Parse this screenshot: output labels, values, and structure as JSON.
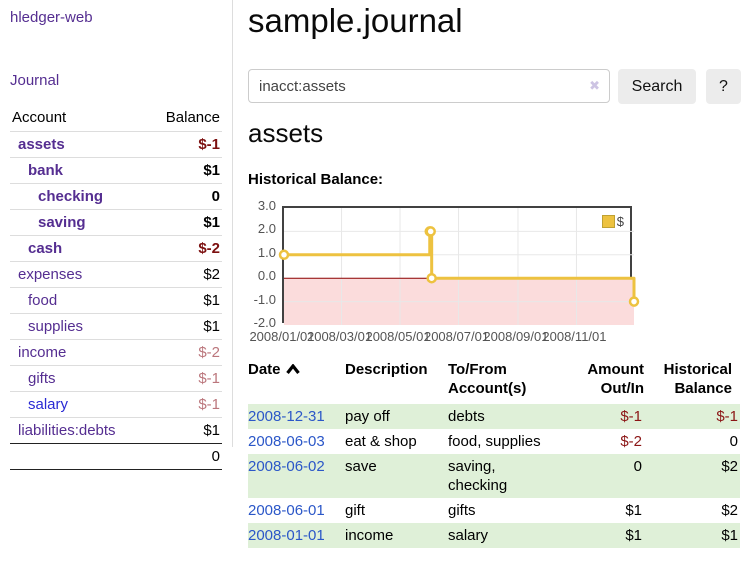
{
  "app": {
    "title": "hledger-web"
  },
  "sidebar": {
    "nav_journal": "Journal",
    "table": {
      "account_header": "Account",
      "balance_header": "Balance"
    },
    "accounts": [
      {
        "name": "assets",
        "indent": 0,
        "bold": true,
        "link": "purple",
        "balance": "$-1",
        "balclass": "neg-strong"
      },
      {
        "name": "bank",
        "indent": 1,
        "bold": true,
        "link": "purple",
        "balance": "$1",
        "balclass": ""
      },
      {
        "name": "checking",
        "indent": 2,
        "bold": true,
        "link": "purple",
        "balance": "0",
        "balclass": ""
      },
      {
        "name": "saving",
        "indent": 2,
        "bold": true,
        "link": "purple",
        "balance": "$1",
        "balclass": ""
      },
      {
        "name": "cash",
        "indent": 1,
        "bold": true,
        "link": "purple",
        "balance": "$-2",
        "balclass": "neg-strong"
      },
      {
        "name": "expenses",
        "indent": 0,
        "bold": false,
        "link": "purple",
        "balance": "$2",
        "balclass": ""
      },
      {
        "name": "food",
        "indent": 1,
        "bold": false,
        "link": "purple",
        "balance": "$1",
        "balclass": ""
      },
      {
        "name": "supplies",
        "indent": 1,
        "bold": false,
        "link": "purple",
        "balance": "$1",
        "balclass": ""
      },
      {
        "name": "income",
        "indent": 0,
        "bold": false,
        "link": "purple",
        "balance": "$-2",
        "balclass": "neg-soft"
      },
      {
        "name": "gifts",
        "indent": 1,
        "bold": false,
        "link": "purple",
        "balance": "$-1",
        "balclass": "neg-soft"
      },
      {
        "name": "salary",
        "indent": 1,
        "bold": false,
        "link": "blue",
        "balance": "$-1",
        "balclass": "neg-soft"
      },
      {
        "name": "liabilities:debts",
        "indent": 0,
        "bold": false,
        "link": "purple",
        "balance": "$1",
        "balclass": ""
      }
    ],
    "total": "0"
  },
  "main": {
    "title": "sample.journal",
    "search": {
      "value": "inacct:assets",
      "clear_icon": "✖",
      "button_label": "Search",
      "help_label": "?"
    },
    "account_heading": "assets"
  },
  "icons": {
    "sort": "chevron-up-icon",
    "clear": "clear-x-icon",
    "legend_swatch": "series-color-square"
  },
  "chart_data": {
    "type": "line",
    "title": "Historical Balance:",
    "step": true,
    "series": [
      {
        "name": "$",
        "color": "#edc240",
        "points": [
          [
            "2008-01-01",
            1
          ],
          [
            "2008-06-01",
            2
          ],
          [
            "2008-06-02",
            2
          ],
          [
            "2008-06-03",
            0
          ],
          [
            "2008-12-31",
            -1
          ]
        ]
      }
    ],
    "x_start": "2008-01-01",
    "x_end": "2008-12-31",
    "x_tick_dates": [
      "2008-01-01",
      "2008-03-01",
      "2008-05-01",
      "2008-07-01",
      "2008-09-01",
      "2008-11-01"
    ],
    "x_tick_labels": [
      "2008/01/01",
      "2008/03/01",
      "2008/05/01",
      "2008/07/01",
      "2008/09/01",
      "2008/11/01"
    ],
    "y_ticks": [
      3.0,
      2.0,
      1.0,
      0.0,
      -1.0,
      -2.0
    ],
    "ylim": [
      -2,
      3
    ],
    "legend": "$",
    "legend_position": "top-right",
    "grid": true,
    "grid_color": "#e8e8e8",
    "negative_fill": "#fbdcdc",
    "zero_line_color": "#8b0000",
    "border_color": "#414141"
  },
  "register": {
    "headers": [
      {
        "label": "Date",
        "align": "left",
        "sorted": true
      },
      {
        "label": "Description",
        "align": "left",
        "sorted": false
      },
      {
        "label": "To/From\nAccount(s)",
        "align": "left",
        "sorted": false
      },
      {
        "label": "Amount\nOut/In",
        "align": "right",
        "sorted": false
      },
      {
        "label": "Historical\nBalance",
        "align": "right",
        "sorted": false
      }
    ],
    "rows": [
      {
        "date": "2008-12-31",
        "description": "pay off",
        "accounts": "debts",
        "amount": "$-1",
        "amount_neg": true,
        "balance": "$-1",
        "balance_neg": true,
        "shade": true
      },
      {
        "date": "2008-06-03",
        "description": "eat & shop",
        "accounts": "food, supplies",
        "amount": "$-2",
        "amount_neg": true,
        "balance": "0",
        "balance_neg": false,
        "shade": false
      },
      {
        "date": "2008-06-02",
        "description": "save",
        "accounts": "saving,\nchecking",
        "amount": "0",
        "amount_neg": false,
        "balance": "$2",
        "balance_neg": false,
        "shade": true
      },
      {
        "date": "2008-06-01",
        "description": "gift",
        "accounts": "gifts",
        "amount": "$1",
        "amount_neg": false,
        "balance": "$2",
        "balance_neg": false,
        "shade": false
      },
      {
        "date": "2008-01-01",
        "description": "income",
        "accounts": "salary",
        "amount": "$1",
        "amount_neg": false,
        "balance": "$1",
        "balance_neg": false,
        "shade": true
      }
    ]
  }
}
